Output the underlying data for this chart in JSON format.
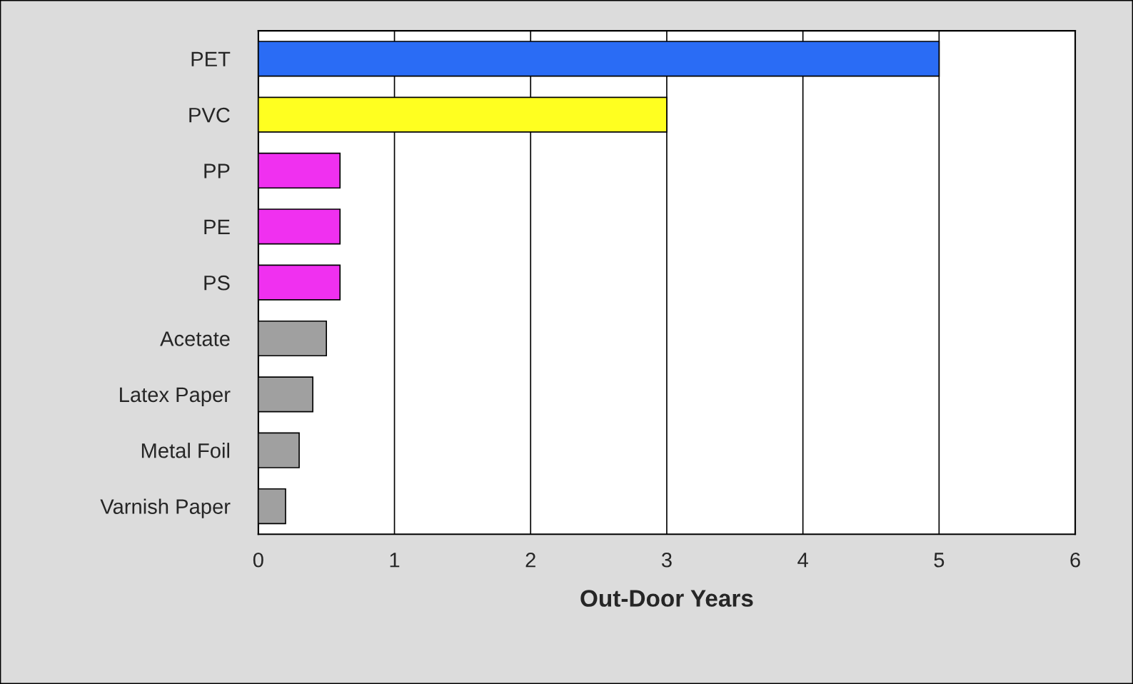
{
  "chart_data": {
    "type": "bar",
    "orientation": "horizontal",
    "xlabel": "Out-Door Years",
    "categories": [
      "PET",
      "PVC",
      "PP",
      "PE",
      "PS",
      "Acetate",
      "Latex Paper",
      "Metal Foil",
      "Varnish Paper"
    ],
    "values": [
      5,
      3,
      0.6,
      0.6,
      0.6,
      0.5,
      0.4,
      0.3,
      0.2
    ],
    "colors": [
      "#2a6cf5",
      "#ffff20",
      "#f030f0",
      "#f030f0",
      "#f030f0",
      "#a0a0a0",
      "#a0a0a0",
      "#a0a0a0",
      "#a0a0a0"
    ],
    "xlim": [
      0,
      6
    ],
    "xticks": [
      0,
      1,
      2,
      3,
      4,
      5,
      6
    ],
    "grid": "x"
  }
}
